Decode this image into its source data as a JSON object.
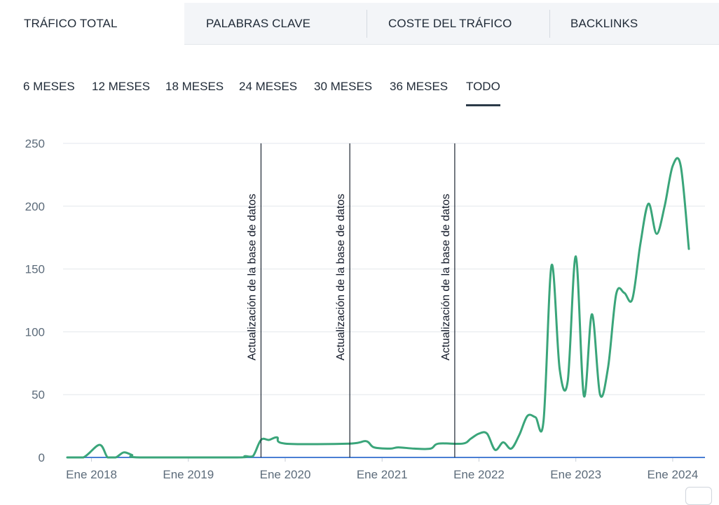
{
  "tabs": [
    {
      "label": "TRÁFICO TOTAL",
      "active": true
    },
    {
      "label": "PALABRAS CLAVE",
      "active": false
    },
    {
      "label": "COSTE DEL TRÁFICO",
      "active": false
    },
    {
      "label": "BACKLINKS",
      "active": false
    }
  ],
  "periods": [
    {
      "label": "6 MESES",
      "active": false
    },
    {
      "label": "12 MESES",
      "active": false
    },
    {
      "label": "18 MESES",
      "active": false
    },
    {
      "label": "24 MESES",
      "active": false
    },
    {
      "label": "30 MESES",
      "active": false
    },
    {
      "label": "36 MESES",
      "active": false
    },
    {
      "label": "TODO",
      "active": true
    }
  ],
  "colors": {
    "series": "#3aa57a",
    "baseline": "#4a7fd4",
    "grid": "#e3e7ec",
    "marker": "#1b2430"
  },
  "chart_data": {
    "type": "line",
    "title": "",
    "xlabel": "",
    "ylabel": "",
    "ylim": [
      0,
      250
    ],
    "yticks": [
      "0",
      "50",
      "100",
      "150",
      "200",
      "250"
    ],
    "xlim": [
      "2017-10",
      "2024-05"
    ],
    "xticks": [
      {
        "date": "2018-01",
        "label": "Ene 2018"
      },
      {
        "date": "2019-01",
        "label": "Ene 2019"
      },
      {
        "date": "2020-01",
        "label": "Ene 2020"
      },
      {
        "date": "2021-01",
        "label": "Ene 2021"
      },
      {
        "date": "2022-01",
        "label": "Ene 2022"
      },
      {
        "date": "2023-01",
        "label": "Ene 2023"
      },
      {
        "date": "2024-01",
        "label": "Ene 2024"
      }
    ],
    "grid": true,
    "legend": "none",
    "annotations": [
      {
        "date": "2019-10",
        "label": "Actualización de la base de datos"
      },
      {
        "date": "2020-09",
        "label": "Actualización de la base de datos"
      },
      {
        "date": "2021-10",
        "label": "Actualización de la base de datos"
      }
    ],
    "series": [
      {
        "points": [
          [
            "2017-10",
            0
          ],
          [
            "2017-12",
            0
          ],
          [
            "2018-02",
            10
          ],
          [
            "2018-03",
            0
          ],
          [
            "2018-04",
            0
          ],
          [
            "2018-05",
            4
          ],
          [
            "2018-06",
            2
          ],
          [
            "2018-07",
            0
          ],
          [
            "2019-07",
            0
          ],
          [
            "2019-08",
            1
          ],
          [
            "2019-09",
            1
          ],
          [
            "2019-10",
            14
          ],
          [
            "2019-11",
            14
          ],
          [
            "2019-12",
            16
          ],
          [
            "2020-01",
            11
          ],
          [
            "2020-09",
            11
          ],
          [
            "2020-11",
            13
          ],
          [
            "2020-12",
            8
          ],
          [
            "2021-02",
            7
          ],
          [
            "2021-03",
            8
          ],
          [
            "2021-05",
            7
          ],
          [
            "2021-07",
            7
          ],
          [
            "2021-08",
            11
          ],
          [
            "2021-11",
            11
          ],
          [
            "2021-12",
            15
          ],
          [
            "2022-01",
            19
          ],
          [
            "2022-02",
            19
          ],
          [
            "2022-03",
            6
          ],
          [
            "2022-04",
            12
          ],
          [
            "2022-05",
            7
          ],
          [
            "2022-06",
            18
          ],
          [
            "2022-07",
            33
          ],
          [
            "2022-08",
            32
          ],
          [
            "2022-09",
            29
          ],
          [
            "2022-10",
            153
          ],
          [
            "2022-11",
            70
          ],
          [
            "2022-12",
            61
          ],
          [
            "2023-01",
            160
          ],
          [
            "2023-02",
            49
          ],
          [
            "2023-03",
            114
          ],
          [
            "2023-04",
            50
          ],
          [
            "2023-05",
            72
          ],
          [
            "2023-06",
            130
          ],
          [
            "2023-07",
            131
          ],
          [
            "2023-08",
            126
          ],
          [
            "2023-09",
            170
          ],
          [
            "2023-10",
            202
          ],
          [
            "2023-11",
            178
          ],
          [
            "2023-12",
            200
          ],
          [
            "2024-01",
            232
          ],
          [
            "2024-02",
            232
          ],
          [
            "2024-03",
            166
          ]
        ]
      }
    ]
  }
}
